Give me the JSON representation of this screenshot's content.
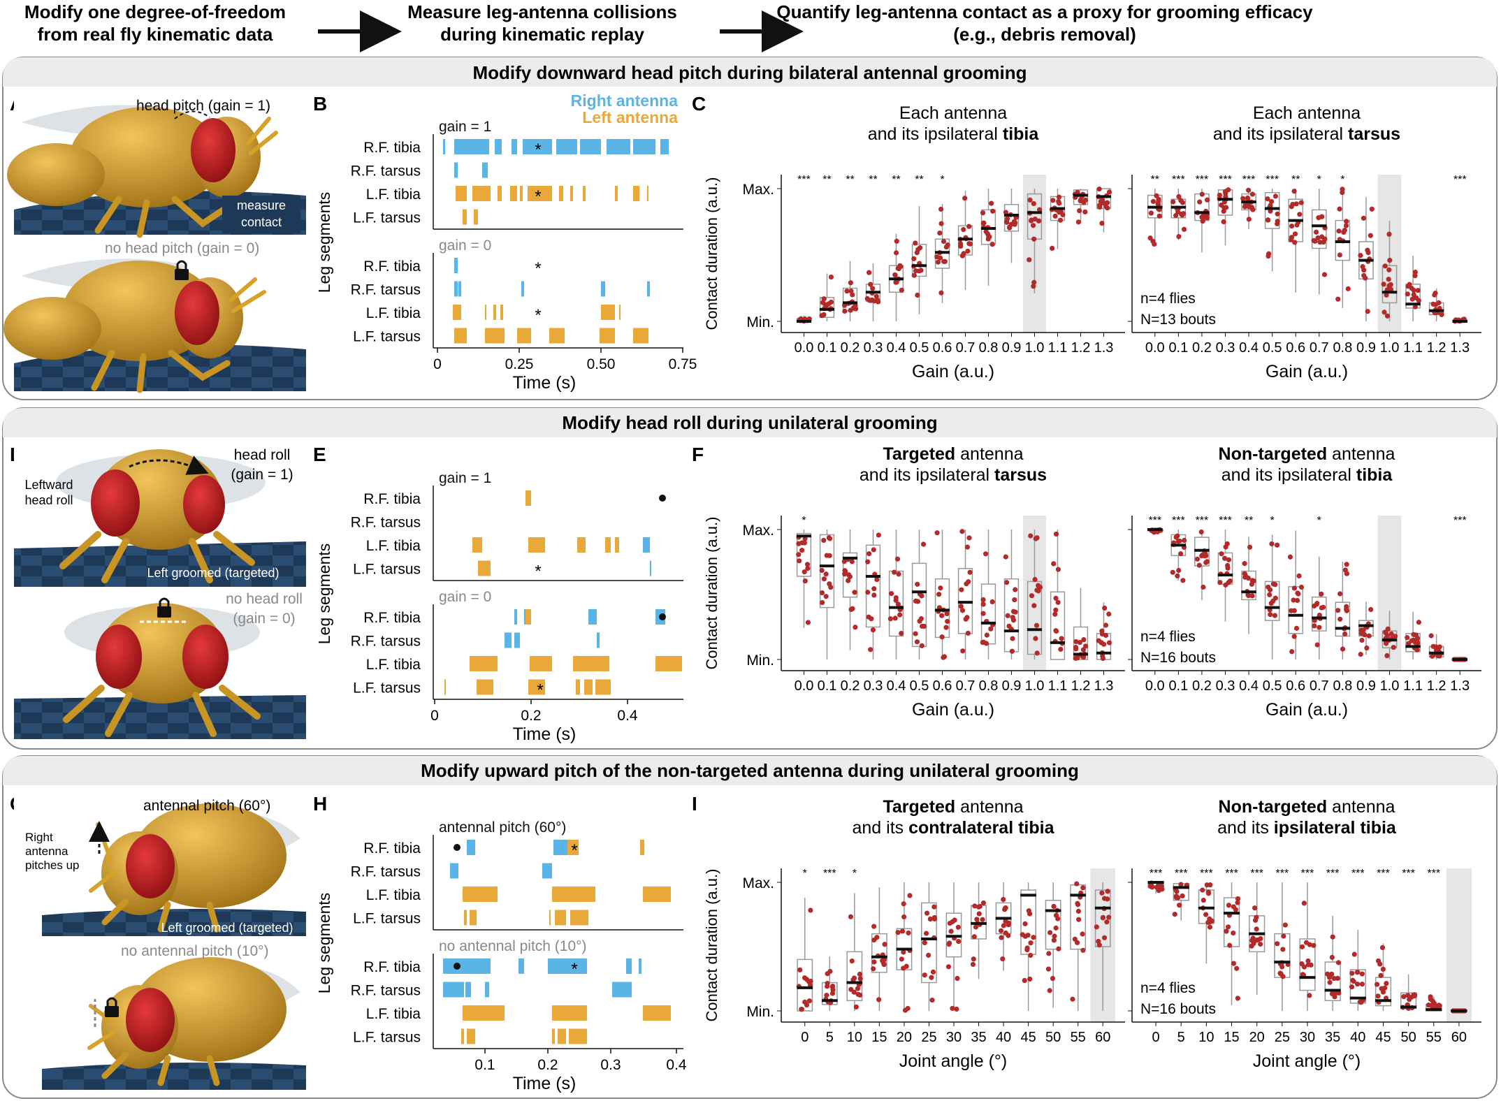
{
  "header": {
    "step1": [
      "Modify one degree-of-freedom",
      "from real fly kinematic data"
    ],
    "step2": [
      "Measure leg-antenna collisions",
      "during kinematic replay"
    ],
    "step3": [
      "Quantify leg-antenna contact as a proxy for grooming efficacy",
      "(e.g., debris removal)"
    ]
  },
  "sections": [
    {
      "title": "Modify downward head pitch during bilateral antennal grooming"
    },
    {
      "title": "Modify head roll during unilateral grooming"
    },
    {
      "title": "Modify upward pitch of the non-targeted antenna during unilateral grooming"
    }
  ],
  "panel_letters": [
    "A",
    "B",
    "C",
    "D",
    "E",
    "F",
    "G",
    "H",
    "I"
  ],
  "fly_labels": {
    "A_top": "head pitch (gain = 1)",
    "A_top_inset": [
      "measure",
      "contact"
    ],
    "A_bottom": "no head pitch (gain = 0)",
    "D_top": [
      "head roll",
      "(gain = 1)"
    ],
    "D_side": [
      "Leftward",
      "head roll"
    ],
    "D_top_inset": "Left groomed (targeted)",
    "D_bottom": [
      "no head roll",
      "(gain = 0)"
    ],
    "G_top": "antennal pitch (60°)",
    "G_side": [
      "Right",
      "antenna",
      "pitches up"
    ],
    "G_top_inset": "Left groomed (targeted)",
    "G_bottom": "no antennal pitch (10°)"
  },
  "raster": {
    "legend": {
      "right": "Right antenna",
      "left": "Left antenna"
    },
    "ylabel": "Leg segments",
    "xlabel": "Time (s)",
    "rows": [
      "R.F. tibia",
      "R.F. tarsus",
      "L.F. tibia",
      "L.F. tarsus"
    ],
    "B": {
      "top": "gain = 1",
      "bottom": "gain = 0",
      "ticks": [
        "0",
        "0.25",
        "0.50",
        "0.75"
      ]
    },
    "E": {
      "top": "gain = 1",
      "bottom": "gain = 0",
      "ticks": [
        "0",
        "0.2",
        "0.4"
      ]
    },
    "H": {
      "top": "antennal pitch (60°)",
      "bottom": "no antennal pitch (10°)",
      "ticks": [
        "0.1",
        "0.2",
        "0.3",
        "0.4"
      ]
    }
  },
  "colors": {
    "right_antenna": "#5ab4e5",
    "left_antenna": "#e8a93a",
    "points": "#b22a2a",
    "highlight": "#d9d9d9",
    "fly_body": "#d6a22a",
    "fly_eye": "#c0191d",
    "floor": "#1f3a5a"
  },
  "chart_data": [
    {
      "panel": "C-left",
      "type": "box",
      "title": [
        "Each antenna",
        "and its ipsilateral ",
        "tibia"
      ],
      "xlabel": "Gain (a.u.)",
      "ylabel": "Contact duration (a.u.)",
      "ytick_labels": [
        "Min.",
        "Max."
      ],
      "categories": [
        "0.0",
        "0.1",
        "0.2",
        "0.3",
        "0.4",
        "0.5",
        "0.6",
        "0.7",
        "0.8",
        "0.9",
        "1.0",
        "1.1",
        "1.2",
        "1.3"
      ],
      "medians": [
        0.0,
        0.09,
        0.14,
        0.22,
        0.32,
        0.42,
        0.52,
        0.62,
        0.7,
        0.8,
        0.82,
        0.85,
        0.95,
        0.94
      ],
      "q1": [
        0.0,
        0.03,
        0.08,
        0.15,
        0.22,
        0.34,
        0.4,
        0.5,
        0.58,
        0.68,
        0.62,
        0.76,
        0.88,
        0.85
      ],
      "q3": [
        0.02,
        0.18,
        0.25,
        0.28,
        0.42,
        0.58,
        0.62,
        0.72,
        0.84,
        0.88,
        0.96,
        0.94,
        0.99,
        1.0
      ],
      "significance": [
        "***",
        "**",
        "**",
        "**",
        "**",
        "**",
        "*",
        "",
        "",
        "",
        "",
        "",
        "",
        ""
      ],
      "highlight": "1.0"
    },
    {
      "panel": "C-right",
      "type": "box",
      "title": [
        "Each antenna",
        "and its ipsilateral ",
        "tarsus"
      ],
      "xlabel": "Gain (a.u.)",
      "ylabel": "",
      "annotation": [
        "n=4 flies",
        "N=13 bouts"
      ],
      "categories": [
        "0.0",
        "0.1",
        "0.2",
        "0.3",
        "0.4",
        "0.5",
        "0.6",
        "0.7",
        "0.8",
        "0.9",
        "1.0",
        "1.1",
        "1.2",
        "1.3"
      ],
      "medians": [
        0.86,
        0.86,
        0.82,
        0.92,
        0.9,
        0.85,
        0.76,
        0.72,
        0.6,
        0.46,
        0.22,
        0.13,
        0.08,
        0.0
      ],
      "q1": [
        0.78,
        0.78,
        0.76,
        0.8,
        0.84,
        0.7,
        0.6,
        0.55,
        0.46,
        0.32,
        0.14,
        0.1,
        0.05,
        0.0
      ],
      "q3": [
        0.95,
        0.92,
        0.96,
        0.99,
        0.96,
        0.97,
        0.92,
        0.84,
        0.76,
        0.6,
        0.42,
        0.28,
        0.14,
        0.01
      ],
      "significance": [
        "**",
        "***",
        "***",
        "***",
        "***",
        "***",
        "**",
        "*",
        "*",
        "",
        "",
        "",
        "",
        "***"
      ],
      "highlight": "1.0"
    },
    {
      "panel": "F-left",
      "type": "box",
      "title": [
        "Targeted",
        " antenna",
        "and its ipsilateral ",
        "tarsus"
      ],
      "xlabel": "Gain (a.u.)",
      "ylabel": "Contact duration (a.u.)",
      "ytick_labels": [
        "Min.",
        "Max."
      ],
      "categories": [
        "0.0",
        "0.1",
        "0.2",
        "0.3",
        "0.4",
        "0.5",
        "0.6",
        "0.7",
        "0.8",
        "0.9",
        "1.0",
        "1.1",
        "1.2",
        "1.3"
      ],
      "medians": [
        0.95,
        0.72,
        0.78,
        0.64,
        0.4,
        0.52,
        0.38,
        0.44,
        0.28,
        0.22,
        0.23,
        0.13,
        0.04,
        0.05
      ],
      "q1": [
        0.64,
        0.4,
        0.48,
        0.25,
        0.18,
        0.1,
        0.17,
        0.2,
        0.12,
        0.06,
        0.04,
        0.0,
        0.0,
        0.0
      ],
      "q3": [
        0.97,
        0.96,
        0.82,
        0.88,
        0.68,
        0.74,
        0.62,
        0.7,
        0.58,
        0.62,
        0.6,
        0.52,
        0.25,
        0.2
      ],
      "significance": [
        "*",
        "",
        "",
        "",
        "",
        "",
        "",
        "",
        "",
        "",
        "",
        "",
        "",
        ""
      ],
      "highlight": "1.0"
    },
    {
      "panel": "F-right",
      "type": "box",
      "title": [
        "Non-targeted",
        " antenna",
        "and its ipsilateral ",
        "tibia"
      ],
      "xlabel": "Gain (a.u.)",
      "ylabel": "",
      "annotation": [
        "n=4 flies",
        "N=16 bouts"
      ],
      "categories": [
        "0.0",
        "0.1",
        "0.2",
        "0.3",
        "0.4",
        "0.5",
        "0.6",
        "0.7",
        "0.8",
        "0.9",
        "1.0",
        "1.1",
        "1.2",
        "1.3"
      ],
      "medians": [
        1.0,
        0.88,
        0.84,
        0.65,
        0.52,
        0.4,
        0.34,
        0.32,
        0.24,
        0.26,
        0.15,
        0.1,
        0.05,
        0.0
      ],
      "q1": [
        0.99,
        0.8,
        0.72,
        0.58,
        0.46,
        0.3,
        0.2,
        0.22,
        0.18,
        0.18,
        0.09,
        0.06,
        0.02,
        0.0
      ],
      "q3": [
        1.0,
        0.96,
        0.94,
        0.82,
        0.68,
        0.6,
        0.56,
        0.48,
        0.44,
        0.3,
        0.22,
        0.2,
        0.1,
        0.0
      ],
      "significance": [
        "***",
        "***",
        "***",
        "***",
        "**",
        "*",
        "",
        "*",
        "",
        "",
        "",
        "",
        "",
        "***"
      ],
      "highlight": "1.0"
    },
    {
      "panel": "I-left",
      "type": "box",
      "title": [
        "Targeted",
        " antenna",
        "and its ",
        "contralateral",
        " tibia"
      ],
      "xlabel": "Joint angle (°)",
      "ylabel": "Contact duration (a.u.)",
      "ytick_labels": [
        "Min.",
        "Max."
      ],
      "categories": [
        "0",
        "5",
        "10",
        "15",
        "20",
        "25",
        "30",
        "35",
        "40",
        "45",
        "50",
        "55",
        "60"
      ],
      "medians": [
        0.18,
        0.08,
        0.22,
        0.42,
        0.48,
        0.56,
        0.58,
        0.68,
        0.72,
        0.9,
        0.78,
        0.9,
        0.8
      ],
      "q1": [
        0.0,
        0.05,
        0.08,
        0.3,
        0.32,
        0.22,
        0.42,
        0.56,
        0.6,
        0.44,
        0.48,
        0.48,
        0.5
      ],
      "q3": [
        0.4,
        0.22,
        0.46,
        0.6,
        0.64,
        0.84,
        0.76,
        0.82,
        0.84,
        0.94,
        0.86,
        0.98,
        0.94
      ],
      "significance": [
        "*",
        "***",
        "*",
        "",
        "",
        "",
        "",
        "",
        "",
        "",
        "",
        "",
        ""
      ],
      "highlight": "60"
    },
    {
      "panel": "I-right",
      "type": "box",
      "title": [
        "Non-targeted",
        " antenna",
        "and its ",
        "ipsilateral",
        " tibia"
      ],
      "xlabel": "Joint angle (°)",
      "ylabel": "",
      "annotation": [
        "n=4 flies",
        "N=16 bouts"
      ],
      "categories": [
        "0",
        "5",
        "10",
        "15",
        "20",
        "25",
        "30",
        "35",
        "40",
        "45",
        "50",
        "55",
        "60"
      ],
      "medians": [
        1.0,
        0.96,
        0.8,
        0.76,
        0.6,
        0.38,
        0.26,
        0.16,
        0.1,
        0.08,
        0.03,
        0.01,
        0.0
      ],
      "q1": [
        0.96,
        0.86,
        0.68,
        0.5,
        0.46,
        0.26,
        0.16,
        0.08,
        0.06,
        0.04,
        0.02,
        0.0,
        0.0
      ],
      "q3": [
        1.0,
        0.99,
        0.94,
        0.88,
        0.74,
        0.6,
        0.56,
        0.38,
        0.32,
        0.26,
        0.14,
        0.05,
        0.0
      ],
      "significance": [
        "***",
        "***",
        "***",
        "***",
        "***",
        "***",
        "***",
        "***",
        "***",
        "***",
        "***",
        "***",
        ""
      ],
      "highlight": "60"
    }
  ]
}
